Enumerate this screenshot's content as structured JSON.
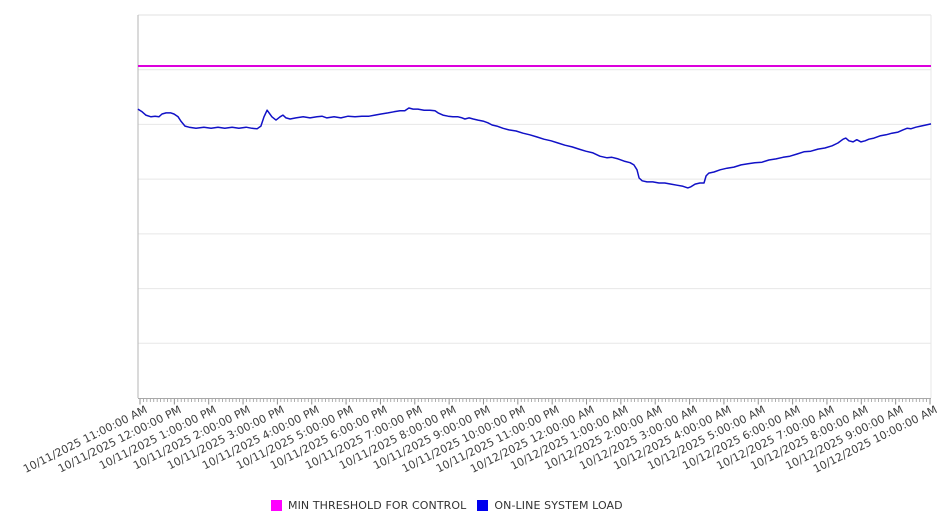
{
  "chart_data": {
    "type": "line",
    "title": "",
    "background": "#ffffff",
    "x_axis": {
      "labels": [
        "10/11/2025 11:00:00 AM",
        "10/11/2025 12:00:00 PM",
        "10/11/2025 1:00:00 PM",
        "10/11/2025 2:00:00 PM",
        "10/11/2025 3:00:00 PM",
        "10/11/2025 4:00:00 PM",
        "10/11/2025 5:00:00 PM",
        "10/11/2025 6:00:00 PM",
        "10/11/2025 7:00:00 PM",
        "10/11/2025 8:00:00 PM",
        "10/11/2025 9:00:00 PM",
        "10/11/2025 10:00:00 PM",
        "10/11/2025 11:00:00 PM",
        "10/12/2025 12:00:00 AM",
        "10/12/2025 1:00:00 AM",
        "10/12/2025 2:00:00 AM",
        "10/12/2025 3:00:00 AM",
        "10/12/2025 4:00:00 AM",
        "10/12/2025 5:00:00 AM",
        "10/12/2025 6:00:00 AM",
        "10/12/2025 7:00:00 AM",
        "10/12/2025 8:00:00 AM",
        "10/12/2025 9:00:00 AM",
        "10/12/2025 10:00:00 AM",
        "10/12/2025 10:00:00 AM"
      ],
      "hours_span": 23,
      "label_rotation_deg": -26.5,
      "minor_ticks_per_hour": 10
    },
    "y_axis": {
      "labels_shown": false,
      "min": 0,
      "max": 7,
      "gridline_step": 1,
      "grid_on": true
    },
    "series": [
      {
        "name": "MIN THRESHOLD FOR CONTROL",
        "style": "horizontal-threshold",
        "color": "#dd00dd",
        "value": 6.07
      },
      {
        "name": "ON-LINE SYSTEM LOAD",
        "style": "line",
        "color": "#1111c7",
        "points": [
          [
            -0.06,
            5.28
          ],
          [
            0.06,
            5.23
          ],
          [
            0.17,
            5.17
          ],
          [
            0.32,
            5.14
          ],
          [
            0.44,
            5.15
          ],
          [
            0.55,
            5.14
          ],
          [
            0.64,
            5.19
          ],
          [
            0.76,
            5.21
          ],
          [
            0.9,
            5.21
          ],
          [
            0.99,
            5.19
          ],
          [
            1.11,
            5.14
          ],
          [
            1.19,
            5.06
          ],
          [
            1.31,
            4.97
          ],
          [
            1.43,
            4.95
          ],
          [
            1.63,
            4.93
          ],
          [
            1.86,
            4.95
          ],
          [
            2.07,
            4.93
          ],
          [
            2.27,
            4.95
          ],
          [
            2.47,
            4.93
          ],
          [
            2.68,
            4.95
          ],
          [
            2.88,
            4.93
          ],
          [
            3.09,
            4.95
          ],
          [
            3.26,
            4.93
          ],
          [
            3.41,
            4.92
          ],
          [
            3.52,
            4.97
          ],
          [
            3.61,
            5.14
          ],
          [
            3.7,
            5.26
          ],
          [
            3.76,
            5.21
          ],
          [
            3.84,
            5.14
          ],
          [
            3.96,
            5.08
          ],
          [
            4.08,
            5.14
          ],
          [
            4.16,
            5.17
          ],
          [
            4.25,
            5.12
          ],
          [
            4.37,
            5.1
          ],
          [
            4.54,
            5.12
          ],
          [
            4.75,
            5.14
          ],
          [
            4.95,
            5.12
          ],
          [
            5.15,
            5.14
          ],
          [
            5.3,
            5.15
          ],
          [
            5.44,
            5.12
          ],
          [
            5.65,
            5.14
          ],
          [
            5.85,
            5.12
          ],
          [
            6.06,
            5.15
          ],
          [
            6.26,
            5.14
          ],
          [
            6.46,
            5.15
          ],
          [
            6.67,
            5.15
          ],
          [
            6.84,
            5.17
          ],
          [
            7.02,
            5.19
          ],
          [
            7.22,
            5.21
          ],
          [
            7.39,
            5.23
          ],
          [
            7.57,
            5.25
          ],
          [
            7.71,
            5.25
          ],
          [
            7.83,
            5.3
          ],
          [
            7.95,
            5.28
          ],
          [
            8.09,
            5.28
          ],
          [
            8.27,
            5.26
          ],
          [
            8.44,
            5.26
          ],
          [
            8.59,
            5.25
          ],
          [
            8.68,
            5.21
          ],
          [
            8.82,
            5.17
          ],
          [
            8.97,
            5.15
          ],
          [
            9.11,
            5.14
          ],
          [
            9.26,
            5.14
          ],
          [
            9.38,
            5.12
          ],
          [
            9.46,
            5.1
          ],
          [
            9.58,
            5.12
          ],
          [
            9.7,
            5.1
          ],
          [
            9.84,
            5.08
          ],
          [
            9.99,
            5.06
          ],
          [
            10.13,
            5.03
          ],
          [
            10.25,
            4.99
          ],
          [
            10.39,
            4.97
          ],
          [
            10.57,
            4.93
          ],
          [
            10.74,
            4.9
          ],
          [
            10.95,
            4.88
          ],
          [
            11.15,
            4.84
          ],
          [
            11.35,
            4.81
          ],
          [
            11.56,
            4.77
          ],
          [
            11.76,
            4.73
          ],
          [
            11.97,
            4.7
          ],
          [
            12.17,
            4.66
          ],
          [
            12.37,
            4.62
          ],
          [
            12.58,
            4.59
          ],
          [
            12.78,
            4.55
          ],
          [
            12.98,
            4.51
          ],
          [
            13.19,
            4.48
          ],
          [
            13.39,
            4.42
          ],
          [
            13.6,
            4.39
          ],
          [
            13.74,
            4.4
          ],
          [
            13.92,
            4.37
          ],
          [
            14.09,
            4.33
          ],
          [
            14.27,
            4.3
          ],
          [
            14.38,
            4.26
          ],
          [
            14.47,
            4.17
          ],
          [
            14.53,
            4.02
          ],
          [
            14.62,
            3.97
          ],
          [
            14.76,
            3.95
          ],
          [
            14.93,
            3.95
          ],
          [
            15.11,
            3.93
          ],
          [
            15.28,
            3.93
          ],
          [
            15.46,
            3.91
          ],
          [
            15.63,
            3.89
          ],
          [
            15.81,
            3.87
          ],
          [
            15.95,
            3.84
          ],
          [
            16.04,
            3.86
          ],
          [
            16.16,
            3.91
          ],
          [
            16.3,
            3.93
          ],
          [
            16.42,
            3.93
          ],
          [
            16.48,
            4.06
          ],
          [
            16.56,
            4.11
          ],
          [
            16.71,
            4.13
          ],
          [
            16.89,
            4.17
          ],
          [
            17.09,
            4.2
          ],
          [
            17.29,
            4.22
          ],
          [
            17.5,
            4.26
          ],
          [
            17.7,
            4.28
          ],
          [
            17.9,
            4.3
          ],
          [
            18.11,
            4.31
          ],
          [
            18.31,
            4.35
          ],
          [
            18.52,
            4.37
          ],
          [
            18.72,
            4.4
          ],
          [
            18.92,
            4.42
          ],
          [
            19.13,
            4.46
          ],
          [
            19.33,
            4.5
          ],
          [
            19.53,
            4.51
          ],
          [
            19.74,
            4.55
          ],
          [
            19.94,
            4.57
          ],
          [
            20.15,
            4.61
          ],
          [
            20.32,
            4.66
          ],
          [
            20.47,
            4.73
          ],
          [
            20.55,
            4.75
          ],
          [
            20.64,
            4.7
          ],
          [
            20.76,
            4.68
          ],
          [
            20.87,
            4.72
          ],
          [
            20.99,
            4.68
          ],
          [
            21.11,
            4.7
          ],
          [
            21.22,
            4.73
          ],
          [
            21.37,
            4.75
          ],
          [
            21.54,
            4.79
          ],
          [
            21.72,
            4.81
          ],
          [
            21.89,
            4.84
          ],
          [
            22.07,
            4.86
          ],
          [
            22.21,
            4.9
          ],
          [
            22.33,
            4.93
          ],
          [
            22.44,
            4.92
          ],
          [
            22.59,
            4.95
          ],
          [
            22.73,
            4.97
          ],
          [
            22.88,
            4.99
          ],
          [
            23.03,
            5.01
          ]
        ]
      }
    ],
    "legend": {
      "position": "bottom-center",
      "items": [
        {
          "label": "MIN THRESHOLD FOR CONTROL",
          "swatch_color": "#ff00ff"
        },
        {
          "label": "ON-LINE SYSTEM LOAD",
          "swatch_color": "#0000ee"
        }
      ]
    },
    "colors": {
      "gridline": "#e7e7e7",
      "axis_line": "#a8a8a8",
      "tick": "#9a9a9a",
      "plot_border_left": "#b5b5b5",
      "plot_border_top": "#e2e2e2",
      "plot_border_right": "#e7e7e7",
      "label_text": "#3f3f3f"
    }
  }
}
